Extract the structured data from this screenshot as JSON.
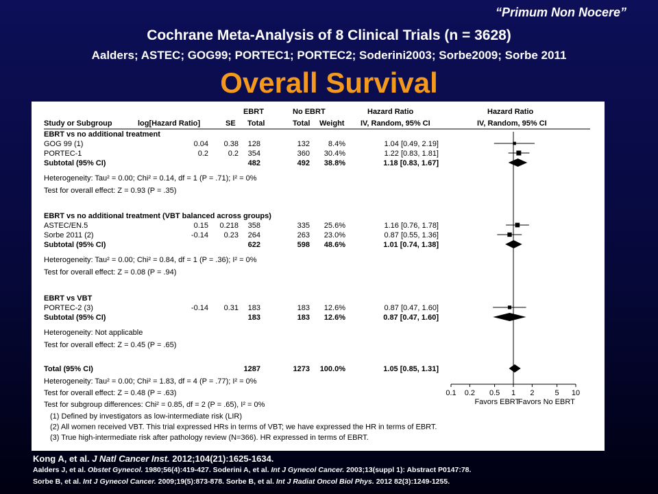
{
  "slide": {
    "quote": "“Primum Non Nocere”",
    "title": "Cochrane Meta-Analysis of 8 Clinical Trials (n = 3628)",
    "subtitle": "Aalders; ASTEC; GOG99; PORTEC1; PORTEC2; Soderini2003; Sorbe2009; Sorbe 2011",
    "headline": "Overall Survival"
  },
  "table": {
    "header_top": {
      "ebrt": "EBRT",
      "no_ebrt": "No EBRT",
      "hr": "Hazard Ratio",
      "hr_plot": "Hazard Ratio"
    },
    "header": {
      "study": "Study or Subgroup",
      "loghr": "log[Hazard Ratio]",
      "se": "SE",
      "total1": "Total",
      "total2": "Total",
      "weight": "Weight",
      "ci": "IV, Random, 95% CI",
      "ci_plot": "IV, Random, 95% CI"
    }
  },
  "chart_data": {
    "type": "forest",
    "x_scale": "log",
    "xlim": [
      0.1,
      10
    ],
    "x_ticks": [
      "0.1",
      "0.2",
      "0.5",
      "1",
      "2",
      "5",
      "10"
    ],
    "favors_left": "Favors EBRT",
    "favors_right": "Favors No EBRT",
    "groups": [
      {
        "name": "EBRT vs no additional treatment",
        "studies": [
          {
            "name": "GOG 99 (1)",
            "loghr": "0.04",
            "se": "0.38",
            "total_ebrt": "128",
            "total_no": "132",
            "weight": "8.4%",
            "ci_text": "1.04 [0.49, 2.19]",
            "hr": 1.04,
            "lo": 0.49,
            "hi": 2.19
          },
          {
            "name": "PORTEC-1",
            "loghr": "0.2",
            "se": "0.2",
            "total_ebrt": "354",
            "total_no": "360",
            "weight": "30.4%",
            "ci_text": "1.22 [0.83, 1.81]",
            "hr": 1.22,
            "lo": 0.83,
            "hi": 1.81
          }
        ],
        "subtotal": {
          "label": "Subtotal (95% CI)",
          "total_ebrt": "482",
          "total_no": "492",
          "weight": "38.8%",
          "ci_text": "1.18 [0.83, 1.67]",
          "hr": 1.18,
          "lo": 0.83,
          "hi": 1.67
        },
        "heterogeneity": "Heterogeneity: Tau² = 0.00; Chi² = 0.14, df = 1 (P = .71); I² = 0%",
        "overall_effect": "Test for overall effect: Z = 0.93 (P = .35)"
      },
      {
        "name": "EBRT vs no additional treatment (VBT balanced across groups)",
        "studies": [
          {
            "name": "ASTEC/EN.5",
            "loghr": "0.15",
            "se": "0.218",
            "total_ebrt": "358",
            "total_no": "335",
            "weight": "25.6%",
            "ci_text": "1.16 [0.76, 1.78]",
            "hr": 1.16,
            "lo": 0.76,
            "hi": 1.78
          },
          {
            "name": "Sorbe 2011 (2)",
            "loghr": "-0.14",
            "se": "0.23",
            "total_ebrt": "264",
            "total_no": "263",
            "weight": "23.0%",
            "ci_text": "0.87 [0.55, 1.36]",
            "hr": 0.87,
            "lo": 0.55,
            "hi": 1.36
          }
        ],
        "subtotal": {
          "label": "Subtotal (95% CI)",
          "total_ebrt": "622",
          "total_no": "598",
          "weight": "48.6%",
          "ci_text": "1.01 [0.74, 1.38]",
          "hr": 1.01,
          "lo": 0.74,
          "hi": 1.38
        },
        "heterogeneity": "Heterogeneity: Tau² = 0.00; Chi² = 0.84, df = 1 (P = .36); I² = 0%",
        "overall_effect": "Test for overall effect: Z = 0.08 (P = .94)"
      },
      {
        "name": "EBRT vs VBT",
        "studies": [
          {
            "name": "PORTEC-2 (3)",
            "loghr": "-0.14",
            "se": "0.31",
            "total_ebrt": "183",
            "total_no": "183",
            "weight": "12.6%",
            "ci_text": "0.87 [0.47, 1.60]",
            "hr": 0.87,
            "lo": 0.47,
            "hi": 1.6
          }
        ],
        "subtotal": {
          "label": "Subtotal (95% CI)",
          "total_ebrt": "183",
          "total_no": "183",
          "weight": "12.6%",
          "ci_text": "0.87 [0.47, 1.60]",
          "hr": 0.87,
          "lo": 0.47,
          "hi": 1.6
        },
        "heterogeneity": "Heterogeneity: Not applicable",
        "overall_effect": "Test for overall effect: Z = 0.45 (P = .65)"
      }
    ],
    "total": {
      "label": "Total (95% CI)",
      "total_ebrt": "1287",
      "total_no": "1273",
      "weight": "100.0%",
      "ci_text": "1.05 [0.85, 1.31]",
      "hr": 1.05,
      "lo": 0.85,
      "hi": 1.31
    },
    "total_heterogeneity": "Heterogeneity: Tau² = 0.00; Chi² = 1.83, df = 4 (P = .77); I² = 0%",
    "total_overall_effect": "Test for overall effect: Z = 0.48 (P = .63)",
    "subgroup_test": "Test for subgroup differences: Chi² = 0.85, df = 2 (P = .65), I² = 0%",
    "footnotes": [
      "(1) Defined by investigators as low-intermediate risk (LIR)",
      "(2) All women received VBT. This trial expressed HRs in terms of VBT; we have expressed the HR in terms of EBRT.",
      "(3) True high-intermediate risk after pathology review (N=366). HR expressed in terms of EBRT."
    ]
  },
  "refs": {
    "ref1_pre": "Kong A, et al. ",
    "ref1_journal": "J Natl Cancer Inst.",
    "ref1_post": " 2012;104(21):1625-1634.",
    "ref2_a": "Aalders J, et al. ",
    "ref2_a_journal": "Obstet Gynecol.",
    "ref2_a_post": " 1980;56(4):419-427.   Soderini A, et al. ",
    "ref2_b_journal": "Int J Gynecol Cancer.",
    "ref2_b_post": " 2003;13(suppl  1): Abstract  P0147:78.",
    "ref3_a": "Sorbe B, et al. ",
    "ref3_a_journal": "Int J Gynecol Cancer.",
    "ref3_a_post": " 2009;19(5):873-878.   Sorbe B, et al. ",
    "ref3_b_journal": "Int J Radiat Oncol Biol Phys.",
    "ref3_b_post": "  2012 82(3):1249-1255."
  }
}
